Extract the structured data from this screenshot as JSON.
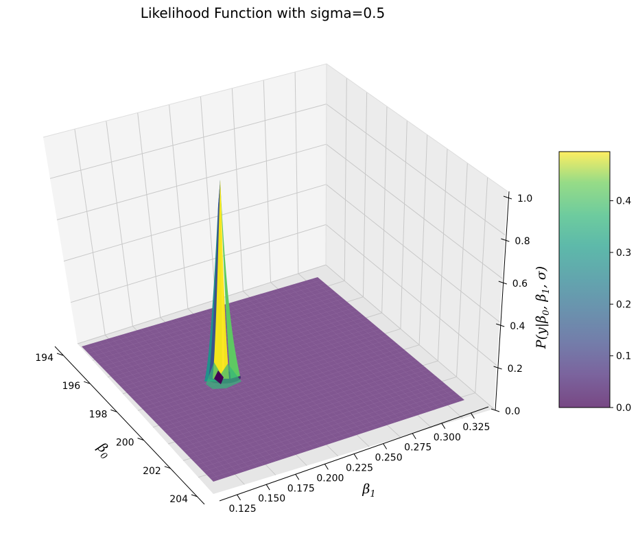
{
  "chart_data": {
    "type": "surface3d",
    "title": "Likelihood Function with sigma=0.5",
    "xlabel": "β0",
    "ylabel": "β1",
    "zlabel": "P(y|β0, β1, σ)",
    "x_ticks": [
      194,
      196,
      198,
      200,
      202,
      204
    ],
    "y_ticks": [
      0.125,
      0.15,
      0.175,
      0.2,
      0.225,
      0.25,
      0.275,
      0.3,
      0.325
    ],
    "z_ticks": [
      0.0,
      0.2,
      0.4,
      0.6,
      0.8,
      1.0
    ],
    "x_tick_labels": [
      "194",
      "196",
      "198",
      "200",
      "202",
      "204"
    ],
    "y_tick_labels": [
      "0.125",
      "0.150",
      "0.175",
      "0.200",
      "0.225",
      "0.250",
      "0.275",
      "0.300",
      "0.325"
    ],
    "z_tick_labels": [
      "0.0",
      "0.2",
      "0.4",
      "0.6",
      "0.8",
      "1.0"
    ],
    "xlim": [
      194,
      204
    ],
    "ylim": [
      0.11,
      0.34
    ],
    "zlim": [
      0,
      1.0
    ],
    "peak": {
      "beta0": 196.2,
      "beta1": 0.27,
      "value": 0.495
    },
    "colormap": "viridis",
    "colorbar": {
      "ticks": [
        0.0,
        0.1,
        0.2,
        0.3,
        0.4
      ],
      "tick_labels": [
        "0.0",
        "0.1",
        "0.2",
        "0.3",
        "0.4"
      ],
      "range": [
        0,
        0.495
      ]
    },
    "surface_base_color": "#7b4f8c",
    "grid": true
  }
}
